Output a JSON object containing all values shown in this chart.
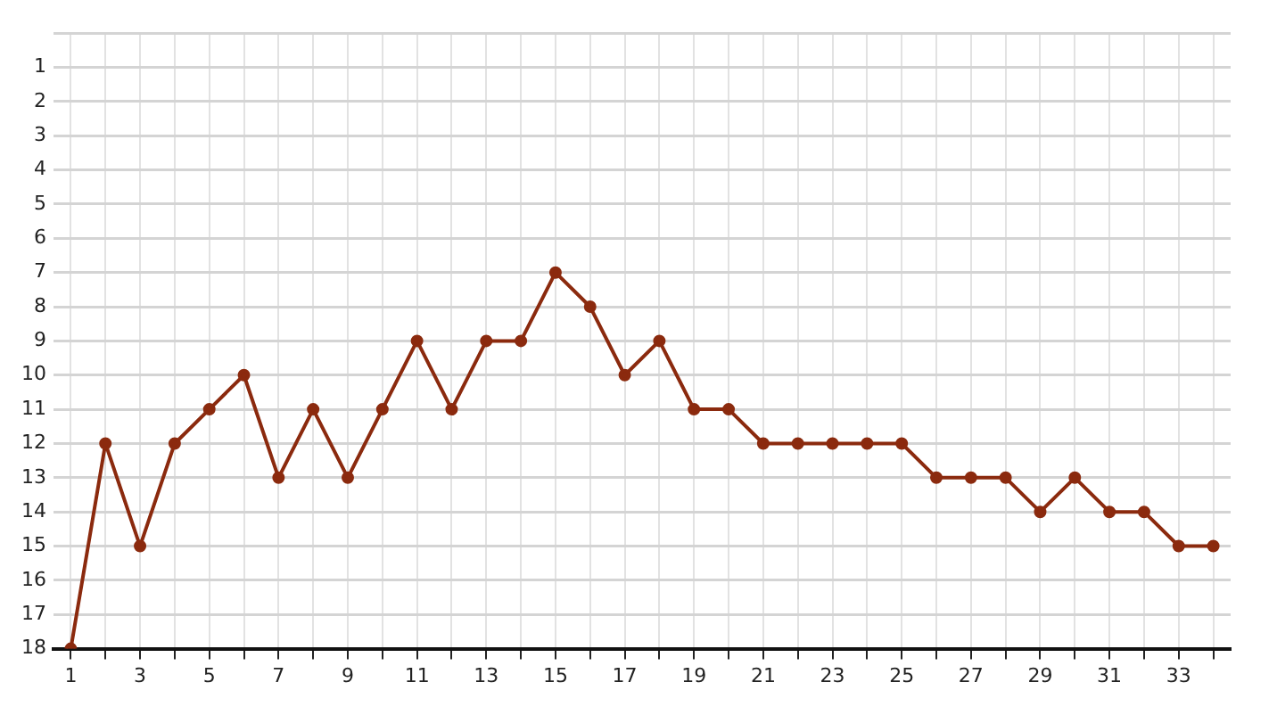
{
  "chart_data": {
    "type": "line",
    "x": [
      1,
      2,
      3,
      4,
      5,
      6,
      7,
      8,
      9,
      10,
      11,
      12,
      13,
      14,
      15,
      16,
      17,
      18,
      19,
      20,
      21,
      22,
      23,
      24,
      25,
      26,
      27,
      28,
      29,
      30,
      31,
      32,
      33,
      34
    ],
    "series": [
      {
        "color": "#8b2a0e",
        "values": [
          18,
          12,
          15,
          12,
          11,
          10,
          13,
          11,
          13,
          11,
          9,
          11,
          9,
          9,
          7,
          8,
          10,
          9,
          11,
          11,
          12,
          12,
          12,
          12,
          12,
          13,
          13,
          13,
          14,
          13,
          14,
          14,
          15,
          15
        ]
      }
    ],
    "xlim": [
      0.5,
      34.5
    ],
    "xticks": [
      1,
      {
        "value": 2,
        "label": null
      },
      3,
      {
        "value": 4,
        "label": null
      },
      5,
      {
        "value": 6,
        "label": null
      },
      7,
      {
        "value": 8,
        "label": null
      },
      9,
      {
        "value": 10,
        "label": null
      },
      11,
      {
        "value": 12,
        "label": null
      },
      13,
      {
        "value": 14,
        "label": null
      },
      15,
      {
        "value": 16,
        "label": null
      },
      17,
      {
        "value": 18,
        "label": null
      },
      19,
      {
        "value": 20,
        "label": null
      },
      21,
      {
        "value": 22,
        "label": null
      },
      23,
      {
        "value": 24,
        "label": null
      },
      25,
      {
        "value": 26,
        "label": null
      },
      27,
      {
        "value": 28,
        "label": null
      },
      29,
      {
        "value": 30,
        "label": null
      },
      31,
      {
        "value": 32,
        "label": null
      },
      33,
      {
        "value": 34,
        "label": null
      }
    ],
    "ylim": [
      18,
      0
    ],
    "yticks": [
      1,
      2,
      3,
      4,
      5,
      6,
      7,
      8,
      9,
      10,
      11,
      12,
      13,
      14,
      15,
      16,
      17,
      18
    ],
    "grid": true,
    "legend": false,
    "marker": "circle",
    "line_style": "solid"
  }
}
